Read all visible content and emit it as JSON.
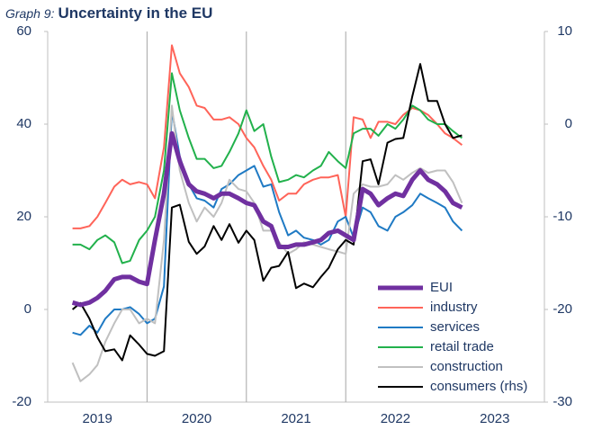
{
  "chart_data": {
    "type": "line",
    "title_prefix": "Graph 9:",
    "title": "Uncertainty in the EU",
    "x": [
      2019.25,
      2019.33,
      2019.42,
      2019.5,
      2019.58,
      2019.67,
      2019.75,
      2019.83,
      2019.92,
      2020.0,
      2020.08,
      2020.17,
      2020.25,
      2020.33,
      2020.42,
      2020.5,
      2020.58,
      2020.67,
      2020.75,
      2020.83,
      2020.92,
      2021.0,
      2021.08,
      2021.17,
      2021.25,
      2021.33,
      2021.42,
      2021.5,
      2021.58,
      2021.67,
      2021.75,
      2021.83,
      2021.92,
      2022.0,
      2022.08,
      2022.17,
      2022.25,
      2022.33,
      2022.42,
      2022.5,
      2022.58,
      2022.67,
      2022.75,
      2022.83,
      2022.92,
      2023.0,
      2023.08,
      2023.17
    ],
    "xlim": [
      2019,
      2024
    ],
    "xticks": [
      {
        "value": 2019.5,
        "label": "2019"
      },
      {
        "value": 2020.5,
        "label": "2020"
      },
      {
        "value": 2021.5,
        "label": "2021"
      },
      {
        "value": 2022.5,
        "label": "2022"
      },
      {
        "value": 2023.5,
        "label": "2023"
      }
    ],
    "xgrid": [
      2020,
      2021,
      2022
    ],
    "ylim": [
      -20,
      60
    ],
    "yticks": [
      -20,
      0,
      20,
      40,
      60
    ],
    "y2lim": [
      -30,
      10
    ],
    "y2ticks": [
      -30,
      -20,
      -10,
      0,
      10
    ],
    "legend": "lower right",
    "series": [
      {
        "name": "EUI",
        "color": "#7030a0",
        "width": 5,
        "values": [
          1.5,
          1,
          1.5,
          2.5,
          4,
          6.5,
          7,
          7,
          6,
          5.5,
          15,
          25,
          38,
          32,
          27,
          25.5,
          25,
          24,
          25,
          25,
          24,
          23,
          22.5,
          19,
          18,
          13.5,
          13.5,
          14,
          14,
          14.5,
          15,
          16.5,
          17,
          16,
          15,
          26,
          25,
          22.5,
          24,
          25,
          24.5,
          28,
          30,
          28,
          27,
          25.5,
          23,
          22
        ]
      },
      {
        "name": "industry",
        "color": "#ff6459",
        "width": 2,
        "values": [
          17.5,
          17.5,
          18,
          20,
          23,
          26.5,
          28,
          27,
          27.5,
          27,
          24,
          35,
          57,
          51,
          48,
          44,
          43.5,
          41,
          41,
          41.5,
          40,
          37,
          35,
          31,
          28,
          23.5,
          25,
          25,
          27,
          28,
          28.5,
          28.5,
          29,
          20,
          41.5,
          41,
          37,
          40.5,
          40.5,
          40,
          42,
          43.5,
          43,
          42,
          40,
          38,
          37,
          35.5
        ]
      },
      {
        "name": "services",
        "color": "#1f7ac4",
        "width": 2,
        "values": [
          -5,
          -5.5,
          -3.5,
          -5,
          -2,
          0,
          0,
          0.5,
          -1,
          -3,
          -2,
          5,
          43,
          33,
          27,
          24,
          23.5,
          22,
          26,
          27,
          29,
          30,
          31,
          26.5,
          27,
          21,
          16,
          17,
          15.5,
          15,
          14,
          15,
          19,
          20,
          15.5,
          22,
          21,
          18,
          17,
          20,
          21,
          22.5,
          25,
          24,
          23,
          22,
          19,
          17
        ]
      },
      {
        "name": "retail trade",
        "color": "#22b14c",
        "width": 2,
        "values": [
          14,
          14,
          13,
          15,
          16,
          14.5,
          10,
          10.5,
          15,
          17,
          20,
          30,
          51,
          43,
          37,
          32.5,
          32.5,
          30.5,
          31,
          34,
          38,
          43,
          38.5,
          40,
          33,
          27.5,
          28,
          29,
          28.5,
          30,
          31,
          34,
          32,
          30.5,
          38,
          39,
          39,
          37.5,
          40,
          39,
          41,
          44,
          43,
          41,
          40,
          40,
          38.5,
          37
        ]
      },
      {
        "name": "construction",
        "color": "#c0c0c0",
        "width": 2,
        "values": [
          -11.5,
          -15.5,
          -14,
          -12,
          -7,
          -3,
          0,
          0,
          -3,
          -2,
          -3,
          15,
          44,
          30,
          23,
          19,
          22,
          20,
          23,
          28,
          26,
          25.5,
          23,
          17,
          17,
          14.5,
          12,
          13,
          14.5,
          14,
          13.5,
          13,
          12.5,
          12,
          25,
          27,
          26.5,
          26.5,
          27,
          29,
          28,
          29.5,
          30.5,
          29.5,
          30,
          30,
          27.5,
          23
        ]
      },
      {
        "name": "consumers (rhs)",
        "color": "#000000",
        "width": 2,
        "axis": "y2",
        "values": [
          -20,
          -19.3,
          -21,
          -23,
          -24.5,
          -24.3,
          -25.5,
          -22.8,
          -23.8,
          -24.8,
          -25,
          -24.5,
          -9,
          -8.7,
          -12.7,
          -14,
          -13.2,
          -11,
          -12.5,
          -10.8,
          -12.8,
          -11.5,
          -12.5,
          -16.9,
          -15.5,
          -15.3,
          -13.8,
          -17.7,
          -17.2,
          -17.6,
          -16.5,
          -15.5,
          -13.5,
          -12.5,
          -13,
          -4,
          -3.8,
          -6.5,
          -2,
          -1.6,
          -1.5,
          3,
          6.5,
          2.5,
          2.5,
          0,
          -1.5,
          -1.2
        ]
      }
    ]
  }
}
